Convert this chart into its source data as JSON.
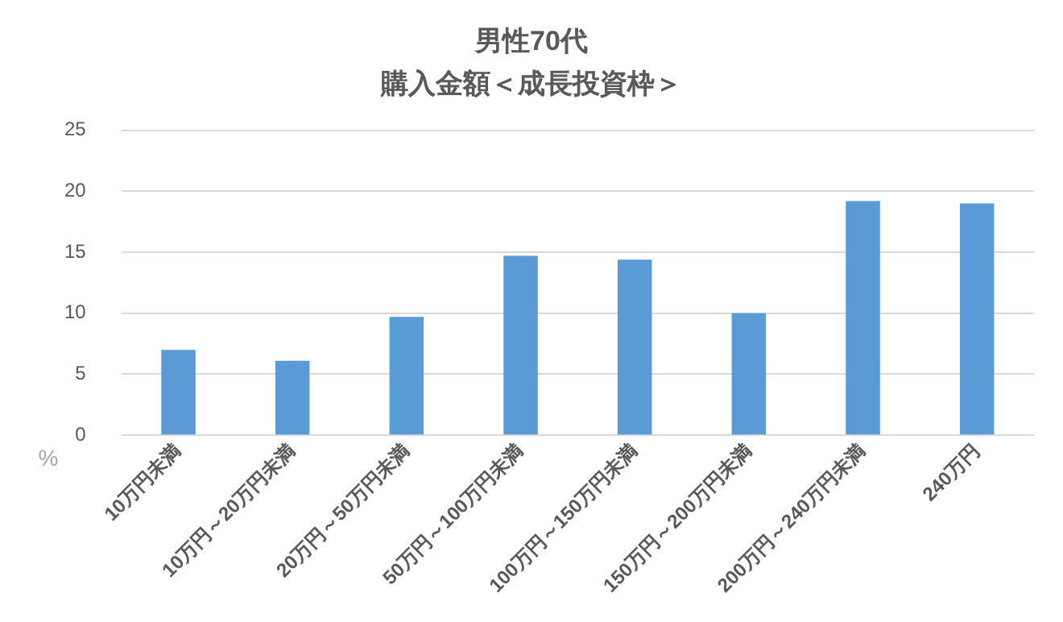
{
  "chart_data": {
    "type": "bar",
    "title": "男性70代",
    "subtitle": "購入金額＜成長投資枠＞",
    "ylabel": "%",
    "categories": [
      "10万円未満",
      "10万円～20万円未満",
      "20万円～50万円未満",
      "50万円～100万円未満",
      "100万円～150万円未満",
      "150万円～200万円未満",
      "200万円～240万円未満",
      "240万円"
    ],
    "values": [
      7.0,
      6.1,
      9.7,
      14.7,
      14.4,
      10.0,
      19.2,
      19.0
    ],
    "color": "#5b9bd5",
    "ylim": [
      0,
      25
    ],
    "yticks": [
      0,
      5,
      10,
      15,
      20,
      25
    ],
    "grid": "y",
    "legend": false
  }
}
